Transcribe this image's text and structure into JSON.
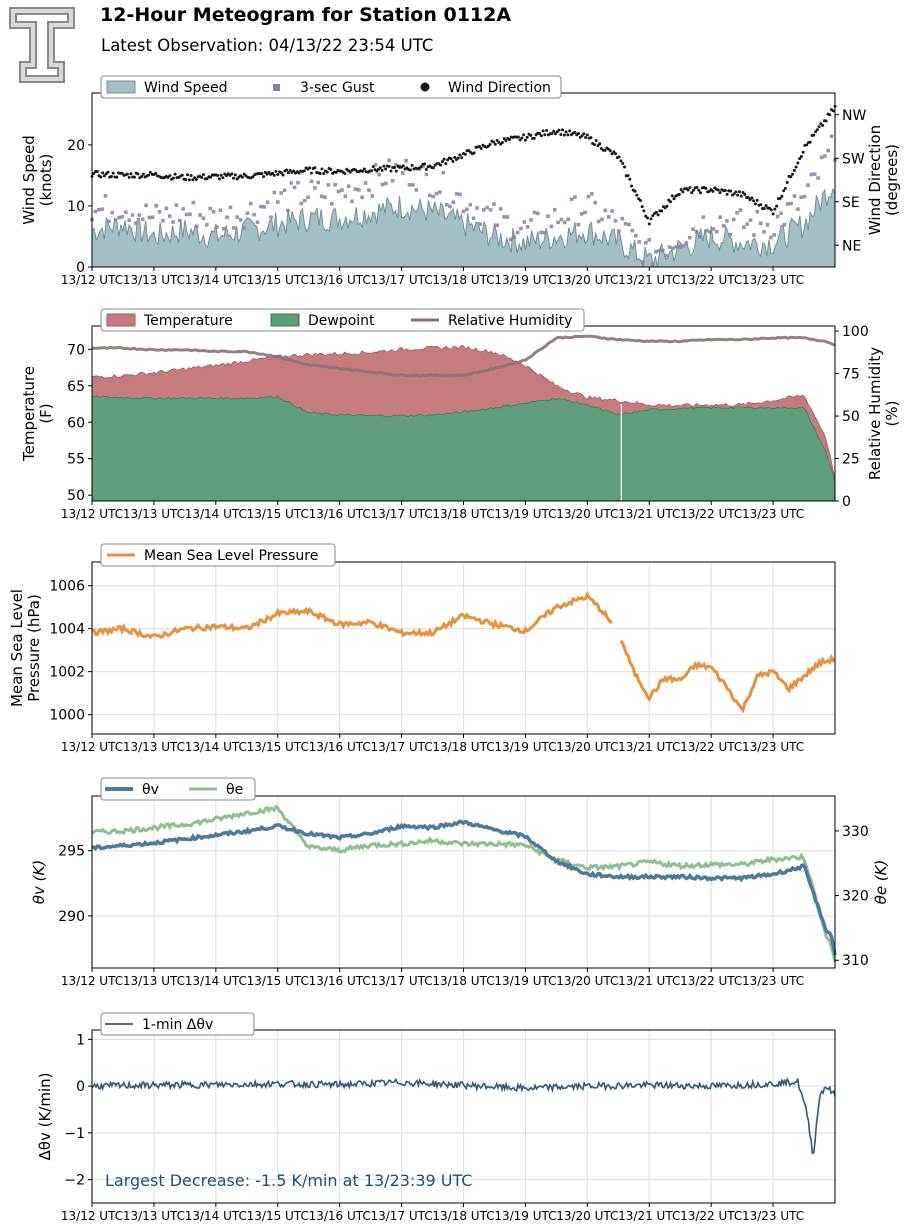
{
  "header": {
    "title": "12-Hour Meteogram for Station 0112A",
    "subtitle": "Latest Observation: 04/13/22 23:54 UTC"
  },
  "time_ticks": [
    "13/12 UTC",
    "13/13 UTC",
    "13/14 UTC",
    "13/15 UTC",
    "13/16 UTC",
    "13/17 UTC",
    "13/18 UTC",
    "13/19 UTC",
    "13/20 UTC",
    "13/21 UTC",
    "13/22 UTC",
    "13/23 UTC"
  ],
  "colors": {
    "wind_speed": "#a5bec3",
    "wind_speed_edge": "#6f9197",
    "gust": "#8a7fa0",
    "direction": "#1a1a1a",
    "temperature": "#c67b7e",
    "dewpoint": "#5e9e7a",
    "rh": "#8a7272",
    "pressure": "#e8913a",
    "theta_v": "#4a7c9a",
    "theta_e": "#8fbf91",
    "dtheta": "#325a73",
    "annotation": "#1f4f73"
  },
  "chart_data": [
    {
      "type": "area",
      "name": "wind",
      "ylabel": "Wind Speed\n(knots)",
      "y2label": "Wind Direction\n(degrees)",
      "ylim": [
        0,
        28.5
      ],
      "yticks": [
        0,
        10,
        20
      ],
      "y2ticks": [
        "NE",
        "SE",
        "SW",
        "NW"
      ],
      "y2ticks_deg": [
        45,
        135,
        225,
        315
      ],
      "y2lim": [
        0,
        360
      ],
      "legend": [
        "Wind Speed",
        "3-sec Gust",
        "Wind Direction"
      ],
      "legend_loc": "top-left",
      "grid": false,
      "hours": [
        12,
        12.5,
        13,
        13.5,
        14,
        14.5,
        15,
        15.5,
        16,
        16.5,
        17,
        17.5,
        18,
        18.5,
        19,
        19.5,
        20,
        20.5,
        21,
        21.5,
        22,
        22.5,
        23,
        23.5,
        24
      ],
      "speed": [
        6,
        7,
        5,
        6,
        5,
        6,
        7,
        8,
        8,
        9,
        10,
        9,
        7,
        5,
        4,
        5,
        6,
        4,
        1,
        3,
        5,
        4,
        4,
        7,
        14
      ],
      "gust": [
        9,
        10,
        8,
        9,
        8,
        9,
        11,
        12,
        12,
        14,
        16,
        14,
        11,
        8,
        6,
        8,
        10,
        7,
        2,
        5,
        8,
        7,
        7,
        11,
        20
      ],
      "direction": [
        192,
        190,
        191,
        185,
        187,
        188,
        194,
        200,
        198,
        202,
        204,
        209,
        232,
        258,
        268,
        282,
        268,
        228,
        95,
        158,
        160,
        150,
        115,
        245,
        330
      ]
    },
    {
      "type": "area",
      "name": "temperature",
      "ylabel": "Temperature\n(F)",
      "y2label": "Relative Humidity\n(%)",
      "ylim": [
        49.2,
        73.2
      ],
      "yticks": [
        50,
        55,
        60,
        65,
        70
      ],
      "y2lim": [
        0,
        103
      ],
      "y2ticks": [
        0,
        25,
        50,
        75,
        100
      ],
      "legend": [
        "Temperature",
        "Dewpoint",
        "Relative Humidity"
      ],
      "legend_loc": "top-left",
      "grid": false,
      "hours": [
        12,
        12.5,
        13,
        13.5,
        14,
        14.5,
        15,
        15.5,
        16,
        16.5,
        17,
        17.5,
        18,
        18.5,
        19,
        19.5,
        20,
        20.5,
        21,
        21.5,
        22,
        22.5,
        23,
        23.5,
        23.85,
        24
      ],
      "temperature": [
        66.2,
        66.4,
        66.8,
        67.3,
        67.8,
        68.4,
        69.0,
        69.3,
        69.4,
        69.6,
        70.0,
        70.2,
        70.3,
        69.6,
        67.8,
        65.0,
        63.4,
        63.0,
        62.4,
        62.3,
        62.4,
        62.4,
        63.0,
        63.7,
        58.0,
        52.5
      ],
      "dewpoint": [
        63.5,
        63.4,
        63.3,
        63.3,
        63.3,
        63.3,
        63.5,
        61.3,
        61.0,
        60.9,
        60.9,
        61.0,
        61.4,
        62.0,
        62.6,
        63.3,
        62.4,
        61.0,
        61.7,
        61.9,
        62.0,
        62.0,
        62.0,
        62.0,
        56.0,
        52.0
      ],
      "rh": [
        90,
        90,
        89,
        89,
        88,
        88,
        85,
        80,
        78,
        76,
        74,
        74,
        74,
        78,
        83,
        96,
        97,
        95,
        94,
        94,
        95,
        95,
        96,
        96,
        94,
        92
      ]
    },
    {
      "type": "line",
      "name": "pressure",
      "ylabel": "Mean Sea Level\nPressure (hPa)",
      "ylim": [
        999.1,
        1007.1
      ],
      "yticks": [
        1000,
        1002,
        1004,
        1006
      ],
      "legend": [
        "Mean Sea Level Pressure"
      ],
      "legend_loc": "top-left",
      "grid": true,
      "hours": [
        12,
        12.5,
        13,
        13.5,
        14,
        14.5,
        15,
        15.5,
        16,
        16.5,
        17,
        17.5,
        18,
        18.5,
        19,
        19.5,
        20,
        20.25,
        20.5,
        20.75,
        21,
        21.25,
        21.5,
        21.75,
        22,
        22.25,
        22.5,
        22.75,
        23,
        23.25,
        23.5,
        23.75,
        24
      ],
      "values": [
        1003.8,
        1004.0,
        1003.6,
        1004.0,
        1004.1,
        1004.0,
        1004.7,
        1004.8,
        1004.2,
        1004.3,
        1003.8,
        1003.8,
        1004.6,
        1004.2,
        1003.9,
        1005.0,
        1005.5,
        1004.8,
        1003.8,
        1002.0,
        1000.8,
        1001.7,
        1001.6,
        1002.3,
        1002.2,
        1001.3,
        1000.2,
        1001.8,
        1002.0,
        1001.2,
        1001.8,
        1002.4,
        1002.6
      ]
    },
    {
      "type": "line",
      "name": "theta",
      "ylabel": "θv (K)",
      "y2label": "θe (K)",
      "ylim": [
        286.0,
        299.2
      ],
      "yticks": [
        290,
        295
      ],
      "y2lim": [
        308.8,
        335.4
      ],
      "y2ticks": [
        310,
        320,
        330
      ],
      "legend": [
        "θv",
        "θe"
      ],
      "legend_loc": "top-left",
      "grid": true,
      "hours": [
        12,
        12.5,
        13,
        13.5,
        14,
        14.5,
        15,
        15.5,
        16,
        16.5,
        17,
        17.5,
        18,
        18.5,
        19,
        19.5,
        20,
        20.5,
        21,
        21.5,
        22,
        22.5,
        23,
        23.5,
        23.85,
        23.95,
        24
      ],
      "theta_v": [
        295.2,
        295.4,
        295.6,
        295.9,
        296.2,
        296.5,
        296.9,
        296.3,
        296.0,
        296.3,
        296.9,
        296.8,
        297.2,
        296.6,
        296.1,
        294.2,
        293.2,
        293.0,
        293.0,
        293.0,
        292.9,
        292.9,
        293.2,
        293.8,
        289.0,
        288.4,
        287.0
      ],
      "theta_e": [
        329.8,
        330.0,
        330.5,
        331.0,
        331.8,
        332.8,
        333.5,
        327.5,
        327.0,
        327.8,
        328.0,
        328.5,
        328.0,
        328.0,
        327.8,
        325.5,
        324.3,
        324.5,
        325.2,
        324.6,
        324.8,
        324.8,
        325.6,
        326.0,
        314.0,
        312.0,
        309.8
      ]
    },
    {
      "type": "line",
      "name": "dtheta",
      "ylabel": "Δθv (K/min)",
      "ylim": [
        -2.5,
        1.2
      ],
      "yticks": [
        -2,
        -1,
        0,
        1
      ],
      "legend": [
        "1-min Δθv"
      ],
      "legend_loc": "top-left",
      "grid": true,
      "hours": [
        12,
        13,
        14,
        15,
        16,
        17,
        18,
        19,
        20,
        21,
        22,
        23,
        23.4,
        23.55,
        23.65,
        23.75,
        23.85,
        24
      ],
      "values": [
        0,
        0.02,
        0.03,
        0.05,
        0.03,
        0.08,
        0.02,
        -0.05,
        0,
        0.02,
        0,
        0.05,
        0.1,
        -0.6,
        -1.5,
        -0.2,
        0,
        -0.2
      ],
      "annotation": "Largest Decrease: -1.5 K/min at 13/23:39 UTC"
    }
  ]
}
